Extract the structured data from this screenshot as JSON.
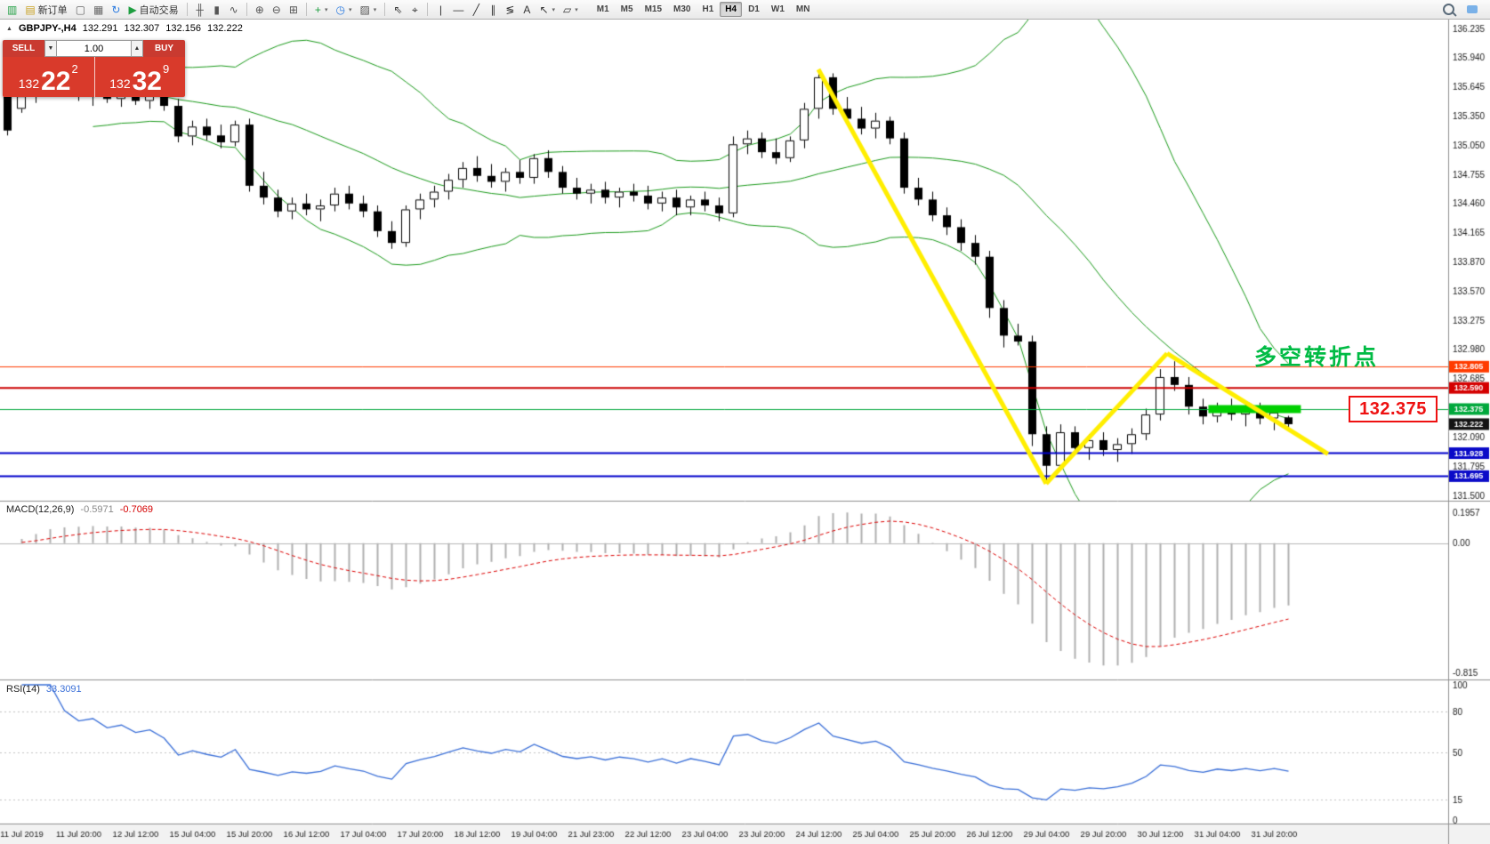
{
  "toolbar": {
    "new_order_label": "新订单",
    "autotrading_label": "自动交易",
    "items": [
      {
        "name": "terminal-icon",
        "glyph": "▥",
        "color": "#1e9e40",
        "interactable": false
      },
      {
        "name": "new-order-button",
        "glyph": "▤",
        "color": "#c8a020",
        "label": "新订单"
      },
      {
        "name": "new-chart-icon",
        "glyph": "▢",
        "color": "#666666"
      },
      {
        "name": "profiles-icon",
        "glyph": "▦",
        "color": "#666666"
      },
      {
        "name": "refresh-icon",
        "glyph": "↻",
        "color": "#2a7ae0"
      },
      {
        "name": "autotrading-button",
        "glyph": "▶",
        "color": "#1e9e40",
        "label": "自动交易"
      },
      {
        "sep": true
      },
      {
        "name": "bar-chart-icon",
        "glyph": "╫",
        "color": "#555555"
      },
      {
        "name": "candlestick-chart-icon",
        "glyph": "▮",
        "color": "#555555"
      },
      {
        "name": "line-chart-icon",
        "glyph": "∿",
        "color": "#555555"
      },
      {
        "sep": true
      },
      {
        "name": "zoom-in-icon",
        "glyph": "⊕",
        "color": "#555555"
      },
      {
        "name": "zoom-out-icon",
        "glyph": "⊖",
        "color": "#555555"
      },
      {
        "name": "tile-windows-icon",
        "glyph": "⊞",
        "color": "#555555"
      },
      {
        "sep": true
      },
      {
        "name": "indicators-icon",
        "glyph": "+",
        "color": "#1e9e40",
        "dropdown": true
      },
      {
        "name": "periods-icon",
        "glyph": "◷",
        "color": "#2a7ae0",
        "dropdown": true
      },
      {
        "name": "templates-icon",
        "glyph": "▨",
        "color": "#555555",
        "dropdown": true
      },
      {
        "sep": true
      },
      {
        "name": "cursor-icon",
        "glyph": "⇖",
        "color": "#333333"
      },
      {
        "name": "crosshair-icon",
        "glyph": "⌖",
        "color": "#333333"
      },
      {
        "sep": true
      },
      {
        "name": "vertical-line-icon",
        "glyph": "|",
        "color": "#333333"
      },
      {
        "name": "horizontal-line-icon",
        "glyph": "―",
        "color": "#333333"
      },
      {
        "name": "trendline-icon",
        "glyph": "╱",
        "color": "#333333"
      },
      {
        "name": "channel-icon",
        "glyph": "∥",
        "color": "#333333"
      },
      {
        "name": "fibonacci-icon",
        "glyph": "≶",
        "color": "#333333"
      },
      {
        "name": "text-icon",
        "glyph": "A",
        "color": "#333333"
      },
      {
        "name": "arrows-icon",
        "glyph": "↖",
        "color": "#333333",
        "dropdown": true
      },
      {
        "name": "shapes-icon",
        "glyph": "▱",
        "color": "#333333",
        "dropdown": true
      }
    ],
    "timeframes": [
      "M1",
      "M5",
      "M15",
      "M30",
      "H1",
      "H4",
      "D1",
      "W1",
      "MN"
    ],
    "active_timeframe": "H4"
  },
  "symbol_info": {
    "collapse_glyph": "▲",
    "title": "GBPJPY-,H4",
    "open": "132.291",
    "high": "132.307",
    "low": "132.156",
    "close": "132.222"
  },
  "trade_panel": {
    "sell_label": "SELL",
    "buy_label": "BUY",
    "volume": "1.00",
    "spin_down_glyph": "▼",
    "spin_up_glyph": "▲",
    "sell_price": {
      "big": "132",
      "pips": "22",
      "point": "2"
    },
    "buy_price": {
      "big": "132",
      "pips": "32",
      "point": "9"
    }
  },
  "indicators": {
    "macd": {
      "label": "MACD(12,26,9)",
      "value_main": "-0.5971",
      "value_signal": "-0.7069",
      "scale": [
        "0.1957",
        "0.00",
        "-0.815"
      ]
    },
    "rsi": {
      "label": "RSI(14)",
      "value": "33.3091",
      "scale": [
        "100",
        "80",
        "50",
        "15",
        "0"
      ]
    }
  },
  "annotations": {
    "turning_point": "多空转折点",
    "turning_point_color": "#00bb44",
    "price_callout": "132.375",
    "callout_color": "#ee1111"
  },
  "chart_data": {
    "type": "candlestick",
    "symbol": "GBPJPY",
    "timeframe": "H4",
    "ylim": [
      131.5,
      136.235
    ],
    "price_axis": [
      "136.235",
      "135.940",
      "135.645",
      "135.350",
      "135.050",
      "134.755",
      "134.460",
      "134.165",
      "133.870",
      "133.570",
      "133.275",
      "132.980",
      "132.685",
      "132.390",
      "132.090",
      "131.795",
      "131.500"
    ],
    "hlines": [
      {
        "price": 132.805,
        "color": "#ff3c00",
        "width": 1
      },
      {
        "price": 132.59,
        "color": "#cc0000",
        "width": 2
      },
      {
        "price": 132.375,
        "color": "#00a83c",
        "width": 1
      },
      {
        "price": 131.928,
        "color": "#0000cc",
        "width": 2
      },
      {
        "price": 131.695,
        "color": "#0000cc",
        "width": 2
      }
    ],
    "tags": [
      {
        "label": "132.805",
        "price": 132.805,
        "color": "#ff3c00"
      },
      {
        "label": "132.590",
        "price": 132.59,
        "color": "#d40000"
      },
      {
        "label": "132.375",
        "price": 132.375,
        "color": "#00a83c"
      },
      {
        "label": "132.222",
        "price": 132.222,
        "color": "#141414"
      },
      {
        "label": "131.928",
        "price": 131.928,
        "color": "#0a0ac8"
      },
      {
        "label": "131.695",
        "price": 131.695,
        "color": "#0a0ac8"
      }
    ],
    "current_price": 132.222,
    "bollinger": {
      "period": 20,
      "deviation": 2,
      "color": "#1a9a1a"
    },
    "trendlines": [
      {
        "b1": 57,
        "p1": 135.82,
        "b2": 73,
        "p2": 131.62,
        "color": "#ffee00",
        "width": 5
      },
      {
        "b1": 73,
        "p1": 131.62,
        "b2": 81.5,
        "p2": 132.94,
        "color": "#ffee00",
        "width": 5
      },
      {
        "b1": 81.5,
        "p1": 132.94,
        "b2": 92.8,
        "p2": 131.92,
        "color": "#ffee00",
        "width": 5
      }
    ],
    "highlight_segment": {
      "bar_start": 84.4,
      "bar_end": 90.9,
      "price": 132.375,
      "color": "#00d000",
      "width": 9
    },
    "time_labels": [
      {
        "bar": 1,
        "label": "11 Jul 2019"
      },
      {
        "bar": 5,
        "label": "11 Jul 20:00"
      },
      {
        "bar": 9,
        "label": "12 Jul 12:00"
      },
      {
        "bar": 13,
        "label": "15 Jul 04:00"
      },
      {
        "bar": 17,
        "label": "15 Jul 20:00"
      },
      {
        "bar": 21,
        "label": "16 Jul 12:00"
      },
      {
        "bar": 25,
        "label": "17 Jul 04:00"
      },
      {
        "bar": 29,
        "label": "17 Jul 20:00"
      },
      {
        "bar": 33,
        "label": "18 Jul 12:00"
      },
      {
        "bar": 37,
        "label": "19 Jul 04:00"
      },
      {
        "bar": 41,
        "label": "21 Jul 23:00"
      },
      {
        "bar": 45,
        "label": "22 Jul 12:00"
      },
      {
        "bar": 49,
        "label": "23 Jul 04:00"
      },
      {
        "bar": 53,
        "label": "23 Jul 20:00"
      },
      {
        "bar": 57,
        "label": "24 Jul 12:00"
      },
      {
        "bar": 61,
        "label": "25 Jul 04:00"
      },
      {
        "bar": 65,
        "label": "25 Jul 20:00"
      },
      {
        "bar": 69,
        "label": "26 Jul 12:00"
      },
      {
        "bar": 73,
        "label": "29 Jul 04:00"
      },
      {
        "bar": 77,
        "label": "29 Jul 20:00"
      },
      {
        "bar": 81,
        "label": "30 Jul 12:00"
      },
      {
        "bar": 85,
        "label": "31 Jul 04:00"
      },
      {
        "bar": 89,
        "label": "31 Jul 20:00"
      }
    ],
    "candles": [
      [
        135.55,
        135.62,
        135.15,
        135.2
      ],
      [
        135.42,
        135.6,
        135.38,
        135.55
      ],
      [
        135.55,
        135.72,
        135.48,
        135.66
      ],
      [
        135.66,
        135.8,
        135.6,
        135.75
      ],
      [
        135.75,
        135.82,
        135.58,
        135.62
      ],
      [
        135.62,
        135.7,
        135.5,
        135.55
      ],
      [
        135.55,
        135.65,
        135.45,
        135.6
      ],
      [
        135.6,
        135.68,
        135.48,
        135.52
      ],
      [
        135.52,
        135.62,
        135.44,
        135.58
      ],
      [
        135.58,
        135.66,
        135.46,
        135.5
      ],
      [
        135.5,
        135.6,
        135.42,
        135.56
      ],
      [
        135.56,
        135.62,
        135.4,
        135.45
      ],
      [
        135.45,
        135.52,
        135.08,
        135.14
      ],
      [
        135.14,
        135.3,
        135.05,
        135.24
      ],
      [
        135.24,
        135.32,
        135.1,
        135.15
      ],
      [
        135.15,
        135.26,
        135.02,
        135.08
      ],
      [
        135.08,
        135.3,
        135.04,
        135.26
      ],
      [
        135.26,
        135.32,
        134.58,
        134.64
      ],
      [
        134.64,
        134.78,
        134.45,
        134.52
      ],
      [
        134.52,
        134.6,
        134.32,
        134.38
      ],
      [
        134.38,
        134.52,
        134.3,
        134.46
      ],
      [
        134.46,
        134.56,
        134.34,
        134.4
      ],
      [
        134.4,
        134.5,
        134.28,
        134.44
      ],
      [
        134.44,
        134.62,
        134.38,
        134.56
      ],
      [
        134.56,
        134.64,
        134.4,
        134.46
      ],
      [
        134.46,
        134.54,
        134.32,
        134.38
      ],
      [
        134.38,
        134.44,
        134.12,
        134.18
      ],
      [
        134.18,
        134.28,
        134.0,
        134.06
      ],
      [
        134.06,
        134.44,
        134.02,
        134.4
      ],
      [
        134.4,
        134.56,
        134.3,
        134.5
      ],
      [
        134.5,
        134.64,
        134.42,
        134.58
      ],
      [
        134.58,
        134.76,
        134.5,
        134.7
      ],
      [
        134.7,
        134.88,
        134.62,
        134.82
      ],
      [
        134.82,
        134.94,
        134.68,
        134.74
      ],
      [
        134.74,
        134.86,
        134.62,
        134.68
      ],
      [
        134.68,
        134.82,
        134.58,
        134.78
      ],
      [
        134.78,
        134.9,
        134.66,
        134.72
      ],
      [
        134.72,
        134.96,
        134.66,
        134.92
      ],
      [
        134.92,
        135.0,
        134.72,
        134.78
      ],
      [
        134.78,
        134.84,
        134.56,
        134.62
      ],
      [
        134.62,
        134.72,
        134.5,
        134.56
      ],
      [
        134.56,
        134.66,
        134.46,
        134.6
      ],
      [
        134.6,
        134.68,
        134.46,
        134.52
      ],
      [
        134.52,
        134.62,
        134.42,
        134.58
      ],
      [
        134.58,
        134.66,
        134.48,
        134.54
      ],
      [
        134.54,
        134.64,
        134.4,
        134.46
      ],
      [
        134.46,
        134.58,
        134.38,
        134.52
      ],
      [
        134.52,
        134.6,
        134.34,
        134.42
      ],
      [
        134.42,
        134.54,
        134.34,
        134.5
      ],
      [
        134.5,
        134.58,
        134.38,
        134.44
      ],
      [
        134.44,
        134.52,
        134.28,
        134.36
      ],
      [
        134.36,
        135.14,
        134.32,
        135.06
      ],
      [
        135.06,
        135.2,
        134.96,
        135.12
      ],
      [
        135.12,
        135.18,
        134.92,
        134.98
      ],
      [
        134.98,
        135.12,
        134.86,
        134.92
      ],
      [
        134.92,
        135.14,
        134.88,
        135.1
      ],
      [
        135.1,
        135.48,
        135.02,
        135.42
      ],
      [
        135.42,
        135.8,
        135.32,
        135.74
      ],
      [
        135.74,
        135.78,
        135.36,
        135.42
      ],
      [
        135.42,
        135.54,
        135.26,
        135.32
      ],
      [
        135.32,
        135.44,
        135.16,
        135.22
      ],
      [
        135.22,
        135.38,
        135.12,
        135.3
      ],
      [
        135.3,
        135.34,
        135.06,
        135.12
      ],
      [
        135.12,
        135.18,
        134.56,
        134.62
      ],
      [
        134.62,
        134.72,
        134.44,
        134.5
      ],
      [
        134.5,
        134.58,
        134.28,
        134.34
      ],
      [
        134.34,
        134.42,
        134.14,
        134.22
      ],
      [
        134.22,
        134.3,
        133.98,
        134.06
      ],
      [
        134.06,
        134.14,
        133.84,
        133.92
      ],
      [
        133.92,
        133.98,
        133.3,
        133.4
      ],
      [
        133.4,
        133.48,
        133.0,
        133.12
      ],
      [
        133.12,
        133.24,
        133.02,
        133.06
      ],
      [
        133.06,
        133.12,
        132.0,
        132.12
      ],
      [
        132.12,
        132.2,
        131.62,
        131.8
      ],
      [
        131.8,
        132.22,
        131.76,
        132.14
      ],
      [
        132.14,
        132.2,
        131.92,
        131.98
      ],
      [
        131.98,
        132.12,
        131.86,
        132.06
      ],
      [
        132.06,
        132.14,
        131.9,
        131.96
      ],
      [
        131.96,
        132.08,
        131.84,
        132.02
      ],
      [
        132.02,
        132.18,
        131.92,
        132.12
      ],
      [
        132.12,
        132.38,
        132.06,
        132.32
      ],
      [
        132.32,
        132.78,
        132.26,
        132.7
      ],
      [
        132.7,
        132.86,
        132.56,
        132.62
      ],
      [
        132.62,
        132.7,
        132.32,
        132.4
      ],
      [
        132.4,
        132.48,
        132.22,
        132.3
      ],
      [
        132.3,
        132.44,
        132.24,
        132.4
      ],
      [
        132.4,
        132.48,
        132.26,
        132.32
      ],
      [
        132.32,
        132.42,
        132.2,
        132.38
      ],
      [
        132.38,
        132.44,
        132.22,
        132.28
      ],
      [
        132.28,
        132.38,
        132.16,
        132.34
      ],
      [
        132.291,
        132.307,
        132.156,
        132.222
      ]
    ]
  }
}
